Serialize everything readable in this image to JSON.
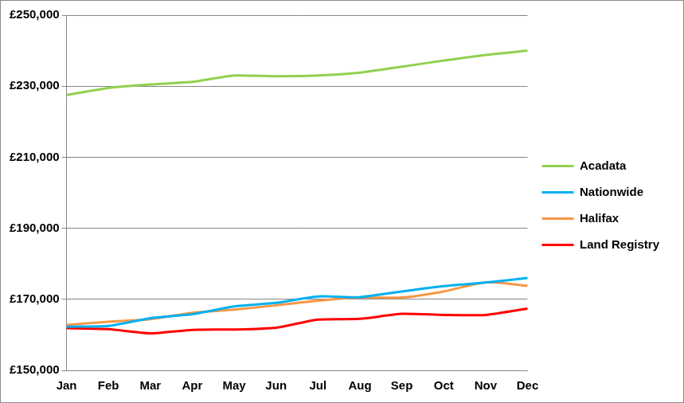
{
  "chart_data": {
    "type": "line",
    "categories": [
      "Jan",
      "Feb",
      "Mar",
      "Apr",
      "May",
      "Jun",
      "Jul",
      "Aug",
      "Sep",
      "Oct",
      "Nov",
      "Dec"
    ],
    "series": [
      {
        "name": "Acadata",
        "color": "#92d050",
        "values": [
          227500,
          229500,
          230500,
          231200,
          233000,
          232800,
          233000,
          233800,
          235500,
          237200,
          238800,
          240000
        ]
      },
      {
        "name": "Nationwide",
        "color": "#00b0f0",
        "values": [
          162300,
          162500,
          164700,
          165800,
          168000,
          169000,
          170800,
          170600,
          172200,
          173700,
          174700,
          176000
        ]
      },
      {
        "name": "Halifax",
        "color": "#f79646",
        "values": [
          162800,
          163700,
          164400,
          166200,
          167100,
          168300,
          169600,
          170500,
          170500,
          172200,
          174800,
          173800
        ]
      },
      {
        "name": "Land Registry",
        "color": "#ff0000",
        "values": [
          161900,
          161600,
          160400,
          161400,
          161500,
          162000,
          164300,
          164500,
          165900,
          165600,
          165600,
          167400
        ]
      }
    ],
    "ylim": [
      150000,
      250000
    ],
    "yticks": [
      {
        "value": 150000,
        "label": "£150,000"
      },
      {
        "value": 170000,
        "label": "£170,000"
      },
      {
        "value": 190000,
        "label": "£190,000"
      },
      {
        "value": 210000,
        "label": "£210,000"
      },
      {
        "value": 230000,
        "label": "£230,000"
      },
      {
        "value": 250000,
        "label": "£250,000"
      }
    ],
    "grid": true,
    "legend": "right"
  }
}
